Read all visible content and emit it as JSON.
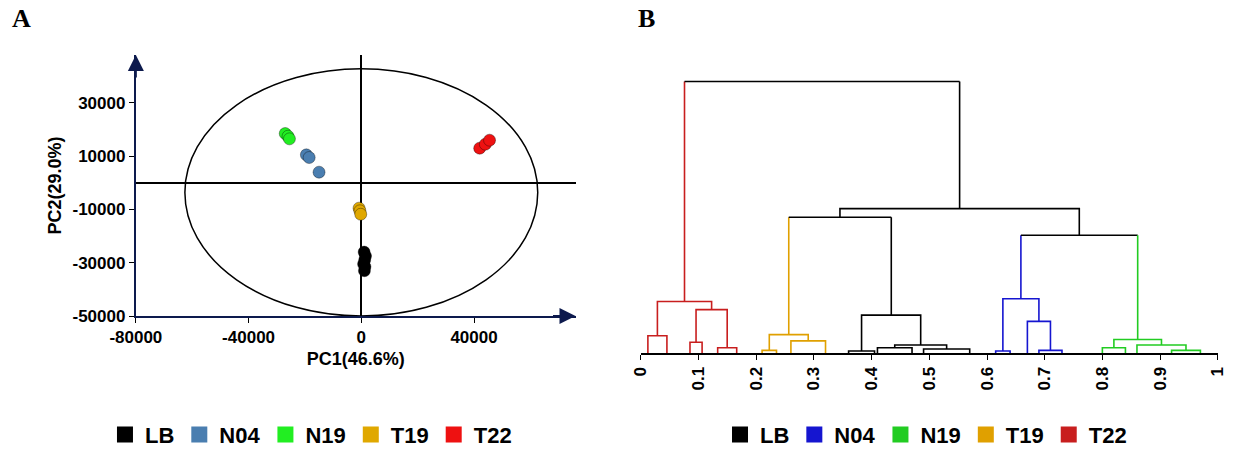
{
  "chart_data": [
    {
      "type": "scatter",
      "title": "A",
      "x_label": "PC1(46.6%)",
      "y_label": "PC2(29.0%)",
      "xlim": [
        -80000,
        76000
      ],
      "ylim": [
        -50000,
        48000
      ],
      "xticks": [
        -80000,
        -40000,
        0,
        40000
      ],
      "yticks": [
        -50000,
        -30000,
        -10000,
        10000,
        30000
      ],
      "grid": false,
      "legend": "bottom",
      "marker": "circle",
      "ellipse": {
        "center": [
          0,
          -3600
        ],
        "radii": [
          62600,
          46400
        ]
      },
      "series": [
        {
          "name": "LB",
          "color": "#000000",
          "x": [
            1000,
            1500,
            1200,
            800,
            1300,
            1100
          ],
          "y": [
            -26000,
            -27500,
            -29000,
            -30500,
            -31500,
            -33000
          ]
        },
        {
          "name": "N04",
          "color": "#4a7eb0",
          "x": [
            -19500,
            -18500,
            -15000
          ],
          "y": [
            10500,
            9500,
            4000
          ]
        },
        {
          "name": "N19",
          "color": "#22ee22",
          "x": [
            -27000,
            -26000,
            -25500
          ],
          "y": [
            18500,
            17500,
            16500
          ]
        },
        {
          "name": "T19",
          "color": "#e0a800",
          "x": [
            -800,
            -500,
            -200
          ],
          "y": [
            -9500,
            -10500,
            -11800
          ]
        },
        {
          "name": "T22",
          "color": "#ee1111",
          "x": [
            42000,
            44000,
            45500
          ],
          "y": [
            13000,
            14500,
            16000
          ]
        }
      ]
    },
    {
      "type": "dendrogram",
      "title": "B",
      "xlim": [
        0,
        1
      ],
      "ylim": [
        0,
        1.03
      ],
      "xticks": [
        0,
        0.1,
        0.2,
        0.3,
        0.4,
        0.5,
        0.6,
        0.7,
        0.8,
        0.9,
        1
      ],
      "tick_labels": "x",
      "legend": "bottom",
      "series": [
        {
          "name": "LB",
          "color": "#000000",
          "links": [
            {
              "x": [
                0.36,
                0.405
              ],
              "y": [
                0,
                0
              ],
              "h": 0.008
            },
            {
              "x": [
                0.41,
                0.47
              ],
              "y": [
                0,
                0
              ],
              "h": 0.02
            },
            {
              "x": [
                0.49,
                0.57
              ],
              "y": [
                0,
                0
              ],
              "h": 0.015
            },
            {
              "x": [
                0.44,
                0.53
              ],
              "y": [
                0.02,
                0.015
              ],
              "h": 0.03
            },
            {
              "x": [
                0.3825,
                0.485
              ],
              "y": [
                0.008,
                0.03
              ],
              "h": 0.14
            }
          ]
        },
        {
          "name": "N04",
          "color": "#1515d0",
          "links": [
            {
              "x": [
                0.615,
                0.64
              ],
              "y": [
                0,
                0
              ],
              "h": 0.008
            },
            {
              "x": [
                0.69,
                0.73
              ],
              "y": [
                0,
                0
              ],
              "h": 0.01
            },
            {
              "x": [
                0.67,
                0.71
              ],
              "y": [
                0,
                0.01
              ],
              "h": 0.117
            },
            {
              "x": [
                0.6275,
                0.69
              ],
              "y": [
                0.008,
                0.117
              ],
              "h": 0.2
            }
          ]
        },
        {
          "name": "N19",
          "color": "#22cc22",
          "links": [
            {
              "x": [
                0.8,
                0.84
              ],
              "y": [
                0,
                0
              ],
              "h": 0.02
            },
            {
              "x": [
                0.92,
                0.97
              ],
              "y": [
                0,
                0
              ],
              "h": 0.01
            },
            {
              "x": [
                0.86,
                0.945
              ],
              "y": [
                0,
                0.01
              ],
              "h": 0.03
            },
            {
              "x": [
                0.82,
                0.9025
              ],
              "y": [
                0.02,
                0.03
              ],
              "h": 0.05
            }
          ]
        },
        {
          "name": "T19",
          "color": "#e0a000",
          "links": [
            {
              "x": [
                0.21,
                0.235
              ],
              "y": [
                0,
                0
              ],
              "h": 0.01
            },
            {
              "x": [
                0.26,
                0.32
              ],
              "y": [
                0,
                0
              ],
              "h": 0.045
            },
            {
              "x": [
                0.2225,
                0.29
              ],
              "y": [
                0.01,
                0.045
              ],
              "h": 0.068
            }
          ]
        },
        {
          "name": "T22",
          "color": "#c81e1e",
          "links": [
            {
              "x": [
                0.012,
                0.045
              ],
              "y": [
                0,
                0
              ],
              "h": 0.064
            },
            {
              "x": [
                0.085,
                0.106
              ],
              "y": [
                0,
                0
              ],
              "h": 0.04
            },
            {
              "x": [
                0.133,
                0.166
              ],
              "y": [
                0,
                0
              ],
              "h": 0.02
            },
            {
              "x": [
                0.0955,
                0.1495
              ],
              "y": [
                0.04,
                0.02
              ],
              "h": 0.16
            },
            {
              "x": [
                0.0285,
                0.1225
              ],
              "y": [
                0.064,
                0.16
              ],
              "h": 0.19
            }
          ]
        }
      ],
      "links": [
        {
          "x": [
            0.25625,
            0.434
          ],
          "y": [
            0.068,
            0.14
          ],
          "h": 0.5,
          "colors": [
            "#e0a000",
            "#000000",
            "#000000"
          ]
        },
        {
          "x": [
            0.65875,
            0.86125
          ],
          "y": [
            0.2,
            0.05
          ],
          "h": 0.434,
          "colors": [
            "#1515d0",
            "#000000",
            "#22cc22"
          ]
        },
        {
          "x": [
            0.345,
            0.76
          ],
          "y": [
            0.5,
            0.434
          ],
          "h": 0.532,
          "color": "#000000"
        },
        {
          "x": [
            0.0755,
            0.5525
          ],
          "y": [
            0.19,
            0.532
          ],
          "h": 1.0,
          "colors": [
            "#c81e1e",
            "#000000",
            "#000000"
          ]
        }
      ]
    }
  ]
}
